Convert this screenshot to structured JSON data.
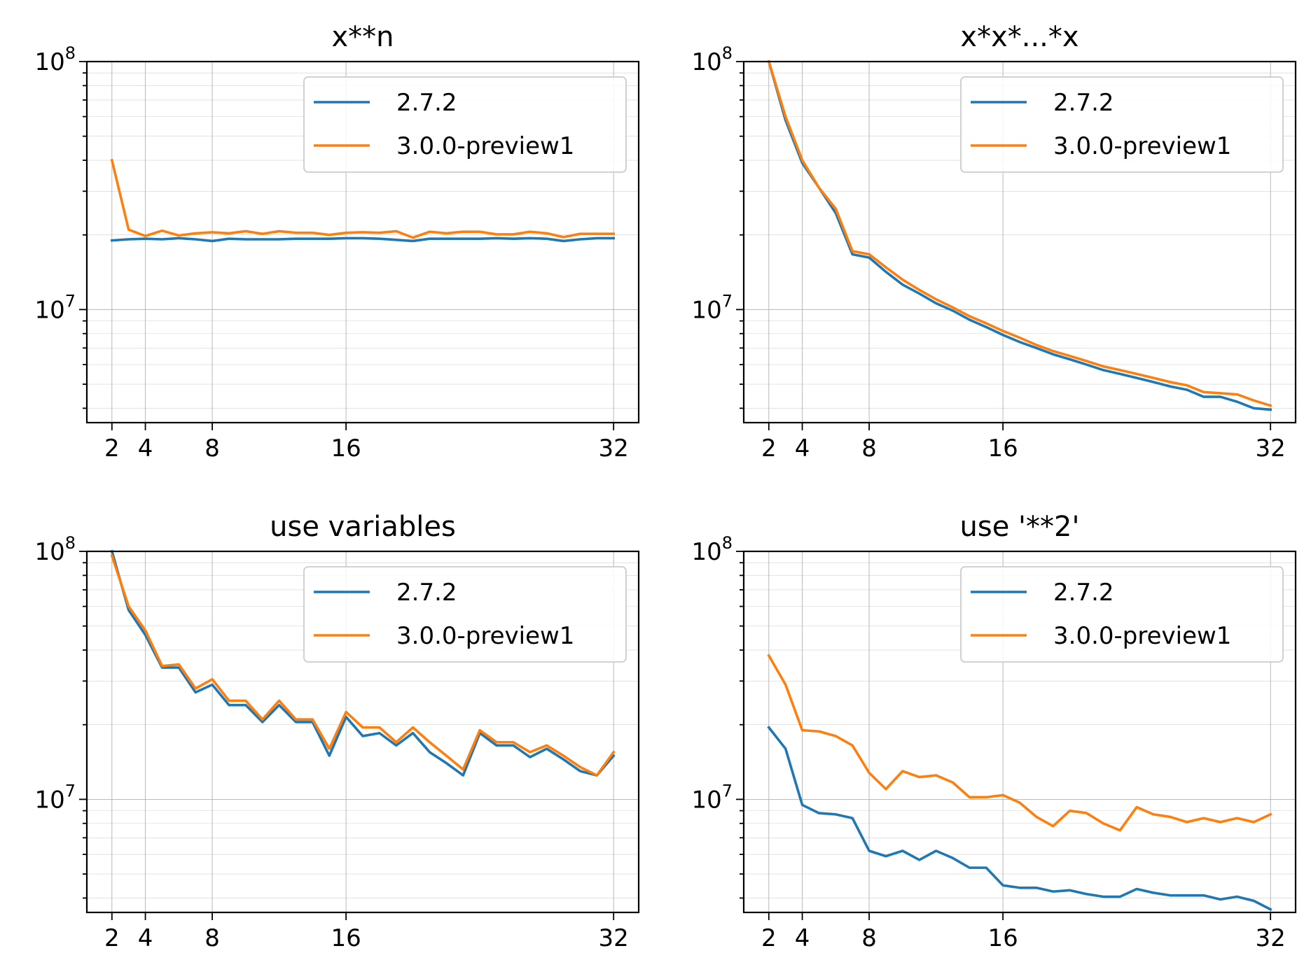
{
  "colors": {
    "series_2_7_2": "#1f77b4",
    "series_3_0_0": "#ff7f0e"
  },
  "chart_data": [
    {
      "type": "line",
      "title": "x**n",
      "xlabel": "",
      "ylabel": "",
      "yscale": "log",
      "ylim": [
        3500000,
        100000000
      ],
      "xlim": [
        0.5,
        33.5
      ],
      "xticks": [
        2,
        4,
        8,
        16,
        32
      ],
      "yticks": [
        {
          "value": 10000000,
          "base": "10",
          "exp": "7"
        },
        {
          "value": 100000000,
          "base": "10",
          "exp": "8"
        }
      ],
      "grid": true,
      "legend": "top-right",
      "x": [
        2,
        3,
        4,
        5,
        6,
        7,
        8,
        9,
        10,
        11,
        12,
        13,
        14,
        15,
        16,
        17,
        18,
        19,
        20,
        21,
        22,
        23,
        24,
        25,
        26,
        27,
        28,
        29,
        30,
        31,
        32
      ],
      "series": [
        {
          "name": "2.7.2",
          "color": "#1f77b4",
          "values": [
            19000000,
            19200000,
            19300000,
            19200000,
            19400000,
            19200000,
            18900000,
            19300000,
            19200000,
            19200000,
            19200000,
            19300000,
            19300000,
            19300000,
            19400000,
            19400000,
            19300000,
            19100000,
            18900000,
            19300000,
            19300000,
            19300000,
            19300000,
            19400000,
            19300000,
            19400000,
            19300000,
            18900000,
            19200000,
            19400000,
            19400000
          ]
        },
        {
          "name": "3.0.0-preview1",
          "color": "#ff7f0e",
          "values": [
            40000000,
            21000000,
            19800000,
            20800000,
            19900000,
            20300000,
            20500000,
            20300000,
            20700000,
            20200000,
            20700000,
            20400000,
            20400000,
            20000000,
            20400000,
            20500000,
            20400000,
            20700000,
            19500000,
            20600000,
            20300000,
            20600000,
            20600000,
            20100000,
            20100000,
            20600000,
            20300000,
            19600000,
            20200000,
            20200000,
            20200000
          ]
        }
      ]
    },
    {
      "type": "line",
      "title": "x*x*...*x",
      "xlabel": "",
      "ylabel": "",
      "yscale": "log",
      "ylim": [
        3500000,
        100000000
      ],
      "xlim": [
        0.5,
        33.5
      ],
      "xticks": [
        2,
        4,
        8,
        16,
        32
      ],
      "yticks": [
        {
          "value": 10000000,
          "base": "10",
          "exp": "7"
        },
        {
          "value": 100000000,
          "base": "10",
          "exp": "8"
        }
      ],
      "grid": true,
      "legend": "top-right",
      "x": [
        2,
        3,
        4,
        5,
        6,
        7,
        8,
        9,
        10,
        11,
        12,
        13,
        14,
        15,
        16,
        17,
        18,
        19,
        20,
        21,
        22,
        23,
        24,
        25,
        26,
        27,
        28,
        29,
        30,
        31,
        32
      ],
      "series": [
        {
          "name": "2.7.2",
          "color": "#1f77b4",
          "values": [
            100000000,
            58000000,
            39000000,
            31000000,
            24500000,
            16700000,
            16200000,
            14200000,
            12600000,
            11600000,
            10600000,
            9900000,
            9100000,
            8500000,
            7900000,
            7400000,
            7000000,
            6600000,
            6300000,
            6000000,
            5700000,
            5500000,
            5300000,
            5100000,
            4900000,
            4750000,
            4450000,
            4450000,
            4250000,
            4000000,
            3950000
          ]
        },
        {
          "name": "3.0.0-preview1",
          "color": "#ff7f0e",
          "values": [
            100000000,
            60000000,
            40000000,
            31000000,
            25500000,
            17200000,
            16700000,
            14800000,
            13200000,
            12000000,
            11000000,
            10200000,
            9400000,
            8800000,
            8200000,
            7700000,
            7200000,
            6800000,
            6500000,
            6200000,
            5900000,
            5700000,
            5500000,
            5300000,
            5100000,
            4950000,
            4650000,
            4600000,
            4550000,
            4300000,
            4100000
          ]
        }
      ]
    },
    {
      "type": "line",
      "title": "use variables",
      "xlabel": "",
      "ylabel": "",
      "yscale": "log",
      "ylim": [
        3500000,
        100000000
      ],
      "xlim": [
        0.5,
        33.5
      ],
      "xticks": [
        2,
        4,
        8,
        16,
        32
      ],
      "yticks": [
        {
          "value": 10000000,
          "base": "10",
          "exp": "7"
        },
        {
          "value": 100000000,
          "base": "10",
          "exp": "8"
        }
      ],
      "grid": true,
      "legend": "top-right",
      "x": [
        2,
        3,
        4,
        5,
        6,
        7,
        8,
        9,
        10,
        11,
        12,
        13,
        14,
        15,
        16,
        17,
        18,
        19,
        20,
        21,
        22,
        23,
        24,
        25,
        26,
        27,
        28,
        29,
        30,
        31,
        32
      ],
      "series": [
        {
          "name": "2.7.2",
          "color": "#1f77b4",
          "values": [
            100000000,
            58000000,
            46000000,
            34000000,
            34000000,
            27000000,
            29000000,
            24000000,
            24000000,
            20500000,
            24000000,
            20500000,
            20500000,
            15000000,
            21500000,
            18000000,
            18500000,
            16500000,
            18500000,
            15500000,
            14000000,
            12500000,
            18500000,
            16500000,
            16500000,
            14800000,
            16000000,
            14500000,
            13000000,
            12500000,
            15000000
          ]
        },
        {
          "name": "3.0.0-preview1",
          "color": "#ff7f0e",
          "values": [
            96000000,
            60000000,
            48000000,
            34500000,
            35000000,
            28000000,
            30500000,
            25000000,
            25000000,
            21000000,
            25000000,
            21000000,
            21000000,
            16000000,
            22500000,
            19500000,
            19500000,
            17000000,
            19500000,
            17000000,
            15000000,
            13200000,
            19000000,
            17000000,
            17000000,
            15500000,
            16500000,
            15000000,
            13500000,
            12500000,
            15500000
          ]
        }
      ]
    },
    {
      "type": "line",
      "title": "use '**2'",
      "xlabel": "",
      "ylabel": "",
      "yscale": "log",
      "ylim": [
        3500000,
        100000000
      ],
      "xlim": [
        0.5,
        33.5
      ],
      "xticks": [
        2,
        4,
        8,
        16,
        32
      ],
      "yticks": [
        {
          "value": 10000000,
          "base": "10",
          "exp": "7"
        },
        {
          "value": 100000000,
          "base": "10",
          "exp": "8"
        }
      ],
      "grid": true,
      "legend": "top-right",
      "x": [
        2,
        3,
        4,
        5,
        6,
        7,
        8,
        9,
        10,
        11,
        12,
        13,
        14,
        15,
        16,
        17,
        18,
        19,
        20,
        21,
        22,
        23,
        24,
        25,
        26,
        27,
        28,
        29,
        30,
        31,
        32
      ],
      "series": [
        {
          "name": "2.7.2",
          "color": "#1f77b4",
          "values": [
            19500000,
            16000000,
            9500000,
            8800000,
            8700000,
            8400000,
            6200000,
            5900000,
            6200000,
            5700000,
            6200000,
            5800000,
            5300000,
            5300000,
            4500000,
            4400000,
            4400000,
            4250000,
            4300000,
            4150000,
            4050000,
            4050000,
            4350000,
            4200000,
            4100000,
            4100000,
            4100000,
            3950000,
            4050000,
            3900000,
            3600000
          ]
        },
        {
          "name": "3.0.0-preview1",
          "color": "#ff7f0e",
          "values": [
            38000000,
            29000000,
            19000000,
            18800000,
            18000000,
            16500000,
            12800000,
            11000000,
            13000000,
            12300000,
            12500000,
            11700000,
            10200000,
            10200000,
            10400000,
            9700000,
            8500000,
            7800000,
            9000000,
            8800000,
            8000000,
            7500000,
            9300000,
            8700000,
            8500000,
            8100000,
            8400000,
            8100000,
            8400000,
            8100000,
            8700000
          ]
        }
      ]
    }
  ]
}
